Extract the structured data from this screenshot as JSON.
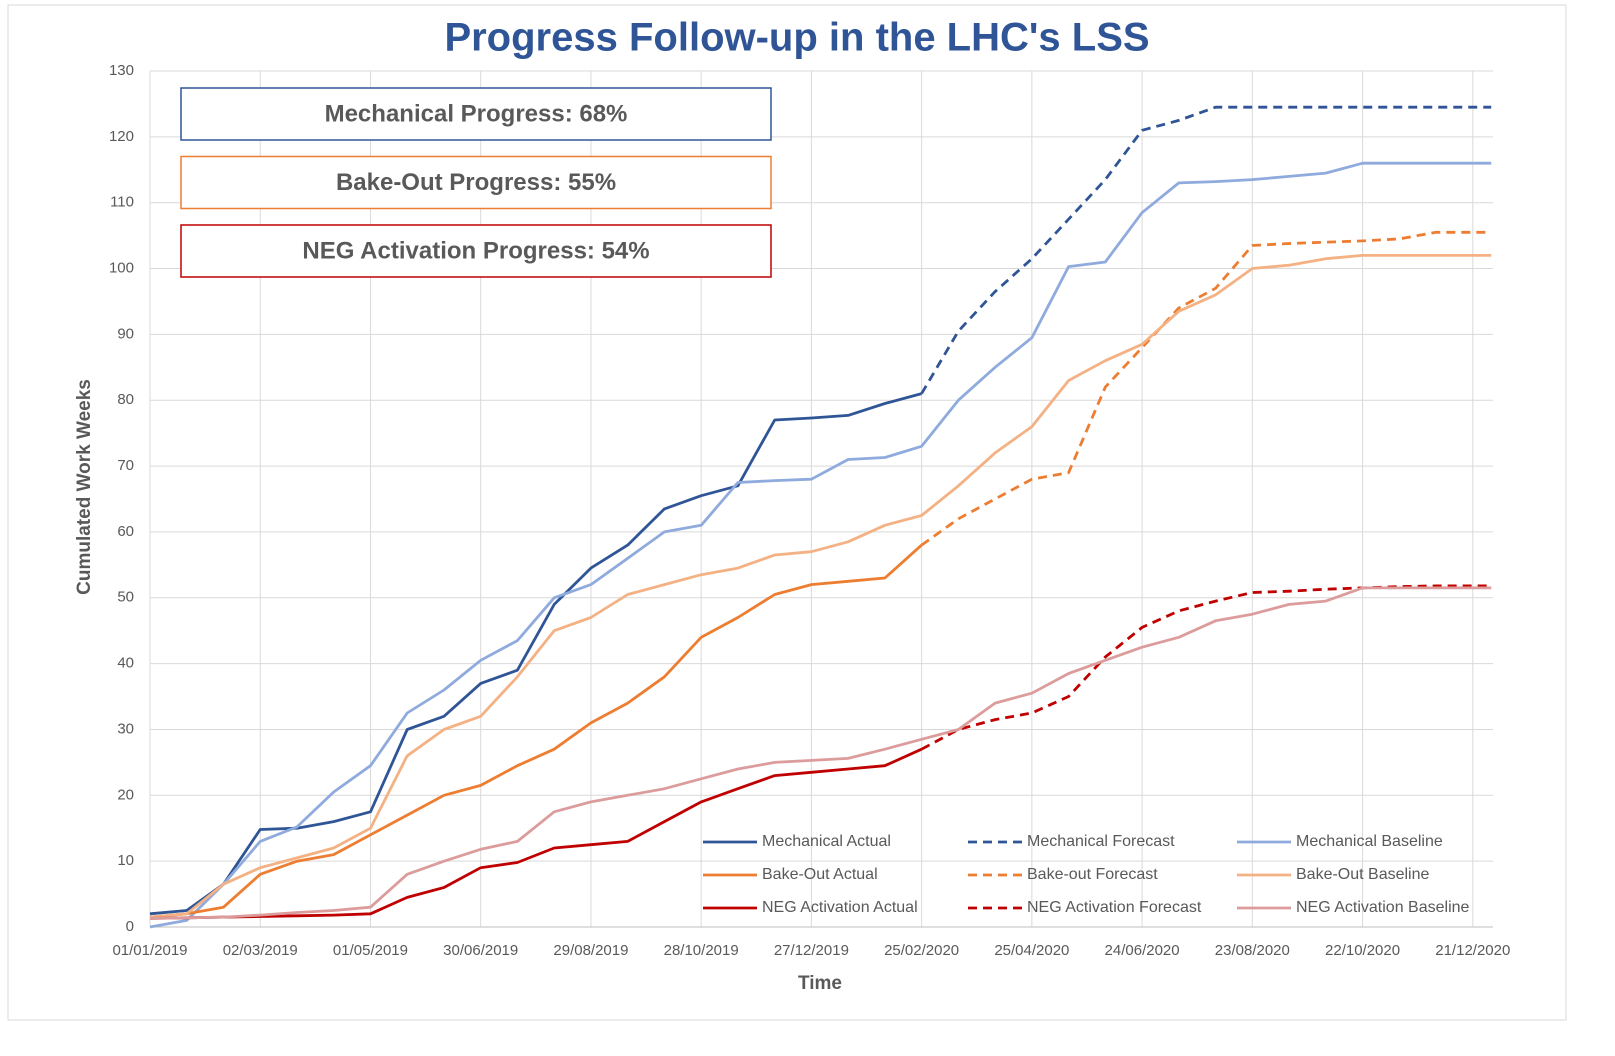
{
  "chart_data": {
    "type": "line",
    "title": "Progress Follow-up in the LHC's LSS",
    "x_label": "Time",
    "y_label": "Cumulated Work Weeks",
    "annotations": [
      {
        "text": "Mechanical Progress: 68%",
        "color": "#2f5597"
      },
      {
        "text": "Bake-Out Progress: 55%",
        "color": "#ed7d31"
      },
      {
        "text": "NEG Activation Progress: 54%",
        "color": "#c00000"
      }
    ],
    "x": [
      "01/01/2019",
      "21/01/2019",
      "10/02/2019",
      "02/03/2019",
      "22/03/2019",
      "11/04/2019",
      "01/05/2019",
      "21/05/2019",
      "10/06/2019",
      "30/06/2019",
      "20/07/2019",
      "09/08/2019",
      "29/08/2019",
      "18/09/2019",
      "08/10/2019",
      "28/10/2019",
      "17/11/2019",
      "07/12/2019",
      "27/12/2019",
      "16/01/2020",
      "05/02/2020",
      "25/02/2020",
      "16/03/2020",
      "05/04/2020",
      "25/04/2020",
      "15/05/2020",
      "04/06/2020",
      "24/06/2020",
      "14/07/2020",
      "03/08/2020",
      "23/08/2020",
      "12/09/2020",
      "02/10/2020",
      "22/10/2020",
      "11/11/2020",
      "01/12/2020",
      "21/12/2020",
      "31/12/2020"
    ],
    "xlim": [
      "01/01/2019",
      "01/01/2021"
    ],
    "xticks": [
      "01/01/2019",
      "02/03/2019",
      "01/05/2019",
      "30/06/2019",
      "29/08/2019",
      "28/10/2019",
      "27/12/2019",
      "25/02/2020",
      "25/04/2020",
      "24/06/2020",
      "23/08/2020",
      "22/10/2020",
      "21/12/2020"
    ],
    "ylim": [
      0,
      130
    ],
    "yticks": [
      0,
      10,
      20,
      30,
      40,
      50,
      60,
      70,
      80,
      90,
      100,
      110,
      120,
      130
    ],
    "grid": true,
    "legend": "lower right",
    "series": [
      {
        "name": "Mechanical Actual",
        "color": "#2f5597",
        "dash": false,
        "values": [
          2,
          2.5,
          6.5,
          14.8,
          15,
          16,
          17.5,
          30,
          32,
          37,
          39,
          49,
          54.5,
          58,
          63.5,
          65.5,
          67,
          77,
          77.3,
          77.7,
          79.5,
          81,
          null,
          null,
          null,
          null,
          null,
          null,
          null,
          null,
          null,
          null,
          null,
          null,
          null,
          null,
          null,
          null
        ]
      },
      {
        "name": "Mechanical Forecast",
        "color": "#2f5597",
        "dash": true,
        "values": [
          null,
          null,
          null,
          null,
          null,
          null,
          null,
          null,
          null,
          null,
          null,
          null,
          null,
          null,
          null,
          null,
          null,
          null,
          null,
          null,
          null,
          81,
          90.5,
          96.5,
          101.5,
          107.5,
          113.5,
          121,
          122.5,
          124.5,
          124.5,
          124.5,
          124.5,
          124.5,
          124.5,
          124.5,
          124.5,
          124.5
        ]
      },
      {
        "name": "Mechanical Baseline",
        "color": "#8faadc",
        "dash": false,
        "values": [
          0,
          1,
          6.5,
          13,
          15.2,
          20.5,
          24.5,
          32.5,
          36,
          40.5,
          43.5,
          50,
          52,
          56,
          60,
          61,
          67.5,
          67.8,
          68,
          71,
          71.3,
          73,
          80,
          85,
          89.5,
          100.3,
          101,
          108.5,
          113,
          113.2,
          113.5,
          114,
          114.5,
          116,
          116,
          116,
          116,
          116
        ]
      },
      {
        "name": "Bake-Out Actual",
        "color": "#ed7d31",
        "dash": false,
        "values": [
          1.5,
          2,
          3,
          8,
          10,
          11,
          14,
          17,
          20,
          21.5,
          24.5,
          27,
          31,
          34,
          38,
          44,
          47,
          50.5,
          52,
          52.5,
          53,
          58,
          null,
          null,
          null,
          null,
          null,
          null,
          null,
          null,
          null,
          null,
          null,
          null,
          null,
          null,
          null,
          null
        ]
      },
      {
        "name": "Bake-out Forecast",
        "color": "#ed7d31",
        "dash": true,
        "values": [
          null,
          null,
          null,
          null,
          null,
          null,
          null,
          null,
          null,
          null,
          null,
          null,
          null,
          null,
          null,
          null,
          null,
          null,
          null,
          null,
          null,
          58,
          62,
          65,
          68,
          69,
          82,
          88,
          94,
          97,
          103.5,
          103.8,
          104,
          104.2,
          104.5,
          105.5,
          105.5,
          105.5
        ]
      },
      {
        "name": "Bake-Out Baseline",
        "color": "#f4b183",
        "dash": false,
        "values": [
          1.5,
          2,
          6.5,
          9,
          10.5,
          12,
          15,
          26,
          30,
          32,
          38,
          45,
          47,
          50.5,
          52,
          53.5,
          54.5,
          56.5,
          57,
          58.5,
          61,
          62.5,
          67,
          72,
          76,
          83,
          86,
          88.5,
          93.5,
          96,
          100,
          100.5,
          101.5,
          102,
          102,
          102,
          102,
          102
        ]
      },
      {
        "name": "NEG Activation Actual",
        "color": "#c00000",
        "dash": false,
        "values": [
          1.3,
          1.4,
          1.5,
          1.6,
          1.7,
          1.8,
          2,
          4.5,
          6,
          9,
          9.8,
          12,
          12.5,
          13,
          16,
          19,
          21,
          23,
          23.5,
          24,
          24.5,
          27,
          null,
          null,
          null,
          null,
          null,
          null,
          null,
          null,
          null,
          null,
          null,
          null,
          null,
          null,
          null,
          null
        ]
      },
      {
        "name": "NEG Activation Forecast",
        "color": "#c00000",
        "dash": true,
        "values": [
          null,
          null,
          null,
          null,
          null,
          null,
          null,
          null,
          null,
          null,
          null,
          null,
          null,
          null,
          null,
          null,
          null,
          null,
          null,
          null,
          null,
          27,
          30,
          31.5,
          32.5,
          35,
          41,
          45.5,
          48,
          49.5,
          50.8,
          51,
          51.3,
          51.5,
          51.7,
          51.8,
          51.8,
          51.8
        ]
      },
      {
        "name": "NEG Activation Baseline",
        "color": "#dc9c9c",
        "dash": false,
        "values": [
          1.3,
          1.4,
          1.5,
          1.8,
          2.2,
          2.5,
          3,
          8,
          10,
          11.8,
          13,
          17.5,
          19,
          20,
          21,
          22.5,
          24,
          25,
          25.3,
          25.6,
          27,
          28.5,
          30,
          34,
          35.5,
          38.5,
          40.5,
          42.5,
          44,
          46.5,
          47.5,
          49,
          49.5,
          51.5,
          51.5,
          51.5,
          51.5,
          51.5
        ]
      }
    ]
  }
}
